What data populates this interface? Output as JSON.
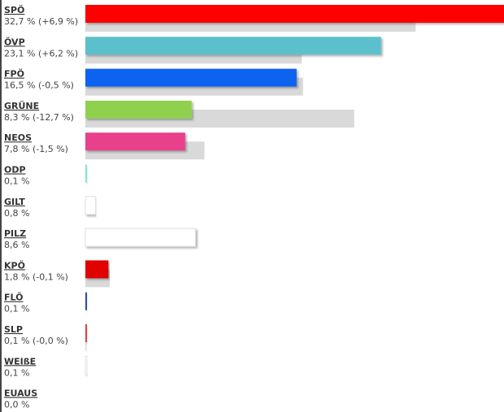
{
  "chart_data": {
    "type": "bar",
    "orientation": "horizontal",
    "categories": [
      "SPÖ",
      "ÖVP",
      "FPÖ",
      "GRÜNE",
      "NEOS",
      "ODP",
      "GILT",
      "PILZ",
      "KPÖ",
      "FLÖ",
      "SLP",
      "WEIßE",
      "EUAUS"
    ],
    "values": [
      32.7,
      23.1,
      16.5,
      8.3,
      7.8,
      0.1,
      0.8,
      8.6,
      1.8,
      0.1,
      0.1,
      0.1,
      0.0
    ],
    "value_labels": [
      "32,7 % (+6,9 %)",
      "23,1 % (+6,2 %)",
      "16,5 % (-0,5 %)",
      "8,3 % (-12,7 %)",
      "7,8 % (-1,5 %)",
      "0,1 %",
      "0,8 %",
      "8,6 %",
      "1,8 % (-0,1 %)",
      "0,1 %",
      "0,1 % (-0,0 %)",
      "0,1 %",
      "0,0 %"
    ],
    "previous": [
      25.8,
      16.9,
      17.0,
      21.0,
      9.3,
      null,
      null,
      null,
      1.9,
      null,
      0.1,
      null,
      null
    ],
    "colors": [
      "#ff0000",
      "#5bc0cc",
      "#0a64f0",
      "#8fd14f",
      "#e8418a",
      "#7ee6d8",
      "#ffffff",
      "#ffffff",
      "#e00000",
      "#2f4fa0",
      "#e04040",
      "#ffffff",
      "#ffffff"
    ],
    "previous_color": "#d9d9d9",
    "xlim": [
      0,
      32.7
    ]
  }
}
